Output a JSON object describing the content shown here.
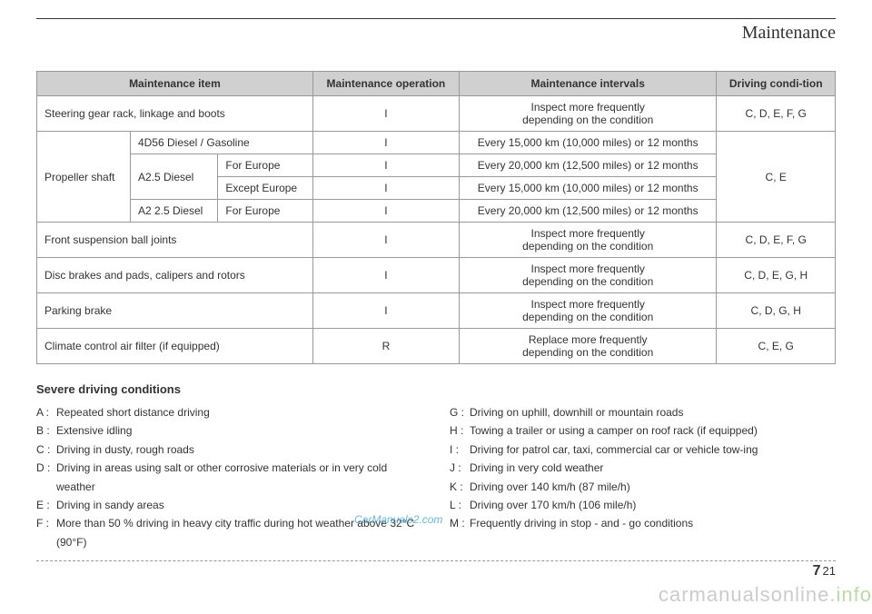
{
  "chapter": "Maintenance",
  "table": {
    "headers": [
      "Maintenance item",
      "Maintenance operation",
      "Maintenance intervals",
      "Driving condi-tion"
    ],
    "rows": {
      "steering": {
        "item": "Steering gear rack, linkage and boots",
        "op": "I",
        "interval": "Inspect more frequently\ndepending on the condition",
        "cond": "C, D, E, F, G"
      },
      "prop_label": "Propeller shaft",
      "prop1": {
        "sub": "4D56 Diesel / Gasoline",
        "op": "I",
        "interval": "Every 15,000 km (10,000 miles) or 12 months"
      },
      "prop2a": "A2.5 Diesel",
      "prop2_eu": {
        "sub": "For Europe",
        "op": "I",
        "interval": "Every 20,000 km (12,500 miles) or 12 months"
      },
      "prop2_ex": {
        "sub": "Except Europe",
        "op": "I",
        "interval": "Every 15,000 km (10,000 miles) or 12 months"
      },
      "prop3a": "A2 2.5 Diesel",
      "prop3": {
        "sub": "For Europe",
        "op": "I",
        "interval": "Every 20,000 km (12,500 miles) or 12 months"
      },
      "prop_cond": "C, E",
      "front": {
        "item": "Front suspension ball joints",
        "op": "I",
        "interval": "Inspect more frequently\ndepending on the condition",
        "cond": "C, D, E, F, G"
      },
      "disc": {
        "item": "Disc brakes and pads, calipers and rotors",
        "op": "I",
        "interval": "Inspect more frequently\ndepending on the condition",
        "cond": "C, D, E, G, H"
      },
      "parking": {
        "item": "Parking brake",
        "op": "I",
        "interval": "Inspect more frequently\ndepending on the condition",
        "cond": "C, D, G, H"
      },
      "climate": {
        "item": "Climate control air filter (if equipped)",
        "op": "R",
        "interval": "Replace more frequently\ndepending on the condition",
        "cond": "C, E, G"
      }
    }
  },
  "conditions": {
    "heading": "Severe driving conditions",
    "left": [
      {
        "k": "A :",
        "t": "Repeated short distance driving"
      },
      {
        "k": "B :",
        "t": "Extensive idling"
      },
      {
        "k": "C :",
        "t": "Driving in dusty, rough roads"
      },
      {
        "k": "D :",
        "t": "Driving in areas using salt or other corrosive materials or in very cold weather"
      },
      {
        "k": "E :",
        "t": "Driving in sandy areas"
      },
      {
        "k": "F :",
        "t": "More than 50 % driving in heavy city traffic during hot weather above 32°C (90°F)"
      }
    ],
    "right": [
      {
        "k": "G :",
        "t": "Driving on uphill, downhill or mountain roads"
      },
      {
        "k": "H :",
        "t": "Towing a trailer or using a camper on roof rack (if equipped)"
      },
      {
        "k": "I  :",
        "t": "Driving for patrol car, taxi, commercial car or vehicle tow-ing"
      },
      {
        "k": "J  :",
        "t": "Driving  in very cold weather"
      },
      {
        "k": "K :",
        "t": "Driving over 140 km/h (87 mile/h)"
      },
      {
        "k": "L :",
        "t": "Driving over 170 km/h (106 mile/h)"
      },
      {
        "k": "M :",
        "t": "Frequently driving in stop - and - go conditions"
      }
    ]
  },
  "watermark1": "CarManuals2.com",
  "watermark2a": "carmanualsonline",
  "watermark2b": ".info",
  "page": {
    "section": "7",
    "num": "21"
  }
}
